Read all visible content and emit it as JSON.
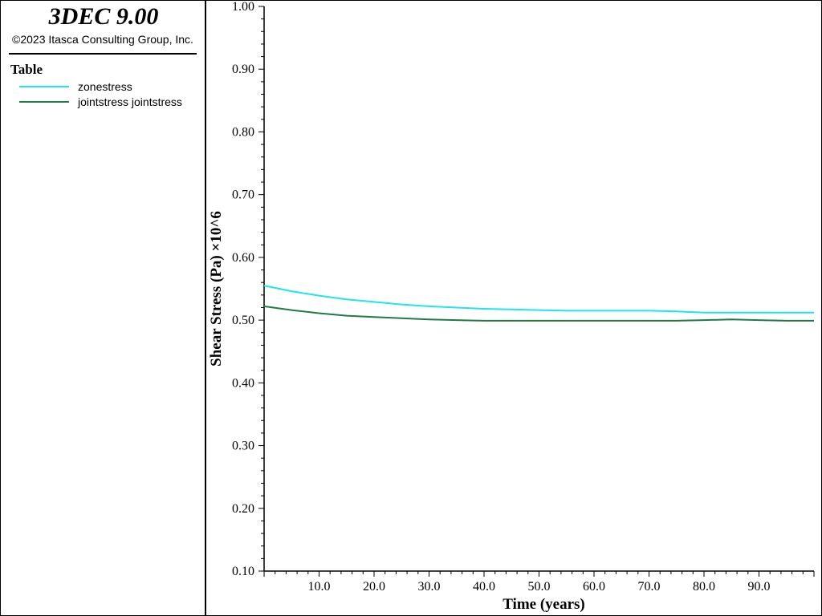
{
  "app": {
    "title": "3DEC 9.00",
    "copyright": "©2023 Itasca Consulting Group, Inc."
  },
  "legend": {
    "title": "Table",
    "items": [
      {
        "label": "zonestress",
        "color": "#1EE6EC"
      },
      {
        "label": "jointstress jointstress",
        "color": "#1F7A4A"
      }
    ]
  },
  "chart_data": {
    "type": "line",
    "xlabel": "Time (years)",
    "ylabel": "Shear Stress (Pa) ×10^6",
    "xlim": [
      0,
      100
    ],
    "ylim": [
      0.1,
      1.0
    ],
    "xticks": [
      "10.0",
      "20.0",
      "30.0",
      "40.0",
      "50.0",
      "60.0",
      "70.0",
      "80.0",
      "90.0"
    ],
    "yticks": [
      "0.10",
      "0.20",
      "0.30",
      "0.40",
      "0.50",
      "0.60",
      "0.70",
      "0.80",
      "0.90",
      "1.00"
    ],
    "series": [
      {
        "name": "zonestress",
        "color": "#1EE6EC",
        "x": [
          0,
          5,
          10,
          15,
          20,
          25,
          30,
          35,
          40,
          45,
          50,
          55,
          60,
          65,
          70,
          75,
          80,
          85,
          90,
          95,
          100
        ],
        "y": [
          0.555,
          0.546,
          0.539,
          0.533,
          0.529,
          0.525,
          0.522,
          0.52,
          0.518,
          0.517,
          0.516,
          0.515,
          0.515,
          0.515,
          0.515,
          0.514,
          0.512,
          0.512,
          0.512,
          0.512,
          0.512
        ]
      },
      {
        "name": "jointstress jointstress",
        "color": "#1F7A4A",
        "x": [
          0,
          5,
          10,
          15,
          20,
          25,
          30,
          35,
          40,
          45,
          50,
          55,
          60,
          65,
          70,
          75,
          80,
          85,
          90,
          95,
          100
        ],
        "y": [
          0.522,
          0.516,
          0.511,
          0.507,
          0.505,
          0.503,
          0.501,
          0.5,
          0.499,
          0.499,
          0.499,
          0.499,
          0.499,
          0.499,
          0.499,
          0.499,
          0.5,
          0.501,
          0.5,
          0.499,
          0.499
        ]
      }
    ]
  }
}
